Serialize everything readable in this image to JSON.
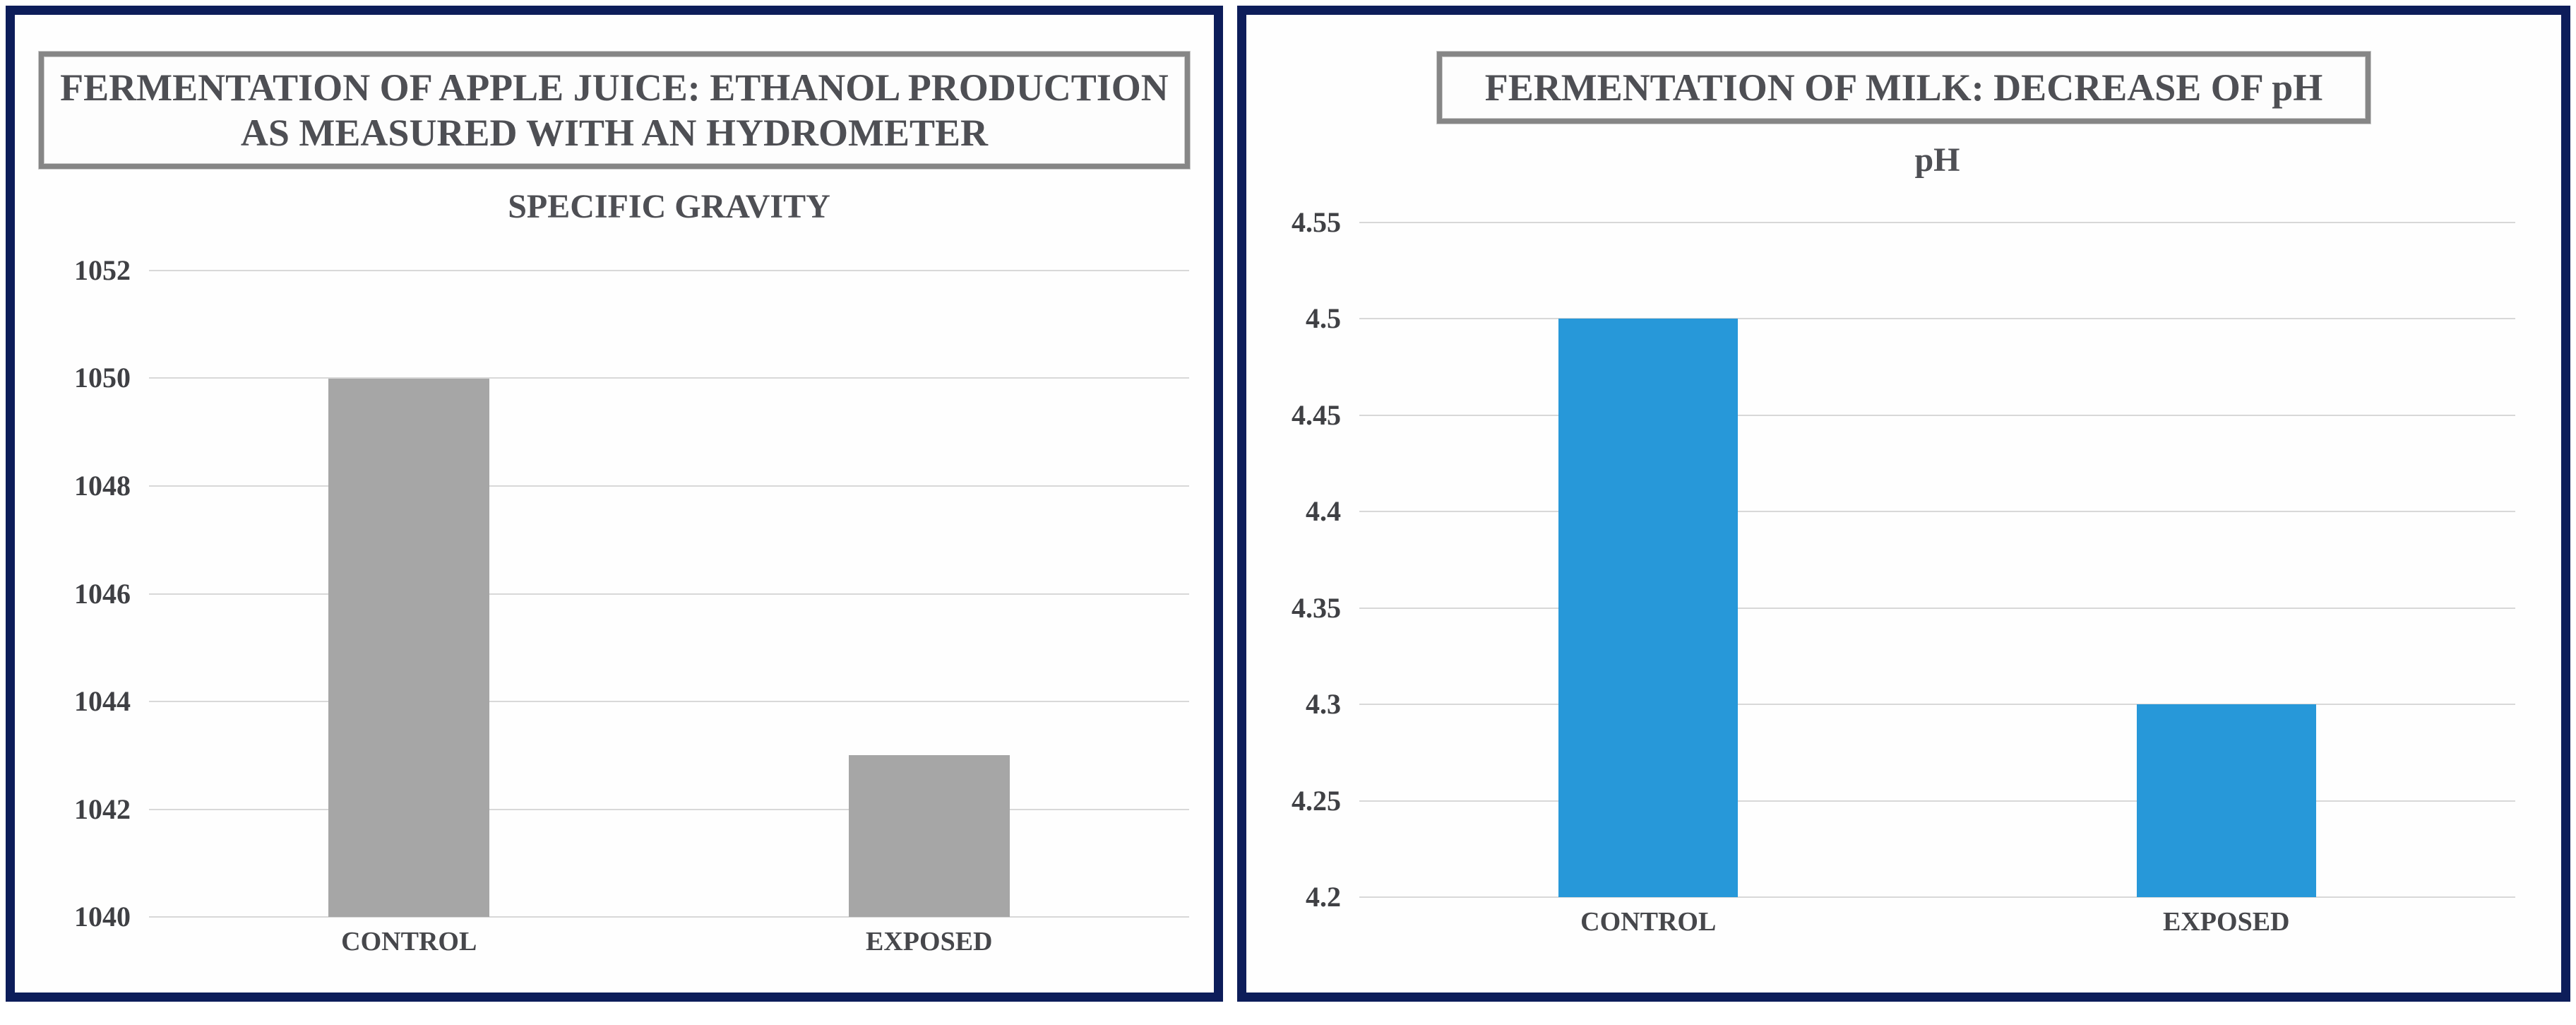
{
  "colors": {
    "panel_border": "#0d1d5a",
    "title_box_border": "#868686",
    "gridline": "#d8d8d8",
    "title_text": "#4e4f54",
    "tick_text": "#3f4044",
    "bar_gray": "#a6a6a6",
    "bar_blue": "#2798d9"
  },
  "chart_data": [
    {
      "type": "bar",
      "title": "FERMENTATION OF APPLE JUICE: ETHANOL PRODUCTION AS MEASURED WITH AN HYDROMETER",
      "title_lines": [
        "FERMENTATION OF APPLE JUICE: ETHANOL PRODUCTION",
        "AS MEASURED WITH AN HYDROMETER"
      ],
      "axis_title": "SPECIFIC GRAVITY",
      "categories": [
        "CONTROL",
        "EXPOSED"
      ],
      "values": [
        1050,
        1043
      ],
      "ylim": [
        1040,
        1052
      ],
      "ytick_step": 2,
      "ytick_labels": [
        "1052",
        "1050",
        "1048",
        "1046",
        "1044",
        "1042",
        "1040"
      ],
      "bar_color": "#a6a6a6",
      "bar_color_name": "gray",
      "grid": "horizontal",
      "legend": "none"
    },
    {
      "type": "bar",
      "title": "FERMENTATION OF MILK: DECREASE OF pH",
      "title_lines": [
        "FERMENTATION OF MILK: DECREASE OF pH"
      ],
      "axis_title": "pH",
      "categories": [
        "CONTROL",
        "EXPOSED"
      ],
      "values": [
        4.5,
        4.3
      ],
      "ylim": [
        4.2,
        4.55
      ],
      "ytick_step": 0.05,
      "ytick_labels": [
        "4.55",
        "4.5",
        "4.45",
        "4.4",
        "4.35",
        "4.3",
        "4.25",
        "4.2"
      ],
      "bar_color": "#2798d9",
      "bar_color_name": "blue",
      "grid": "horizontal",
      "legend": "none"
    }
  ]
}
